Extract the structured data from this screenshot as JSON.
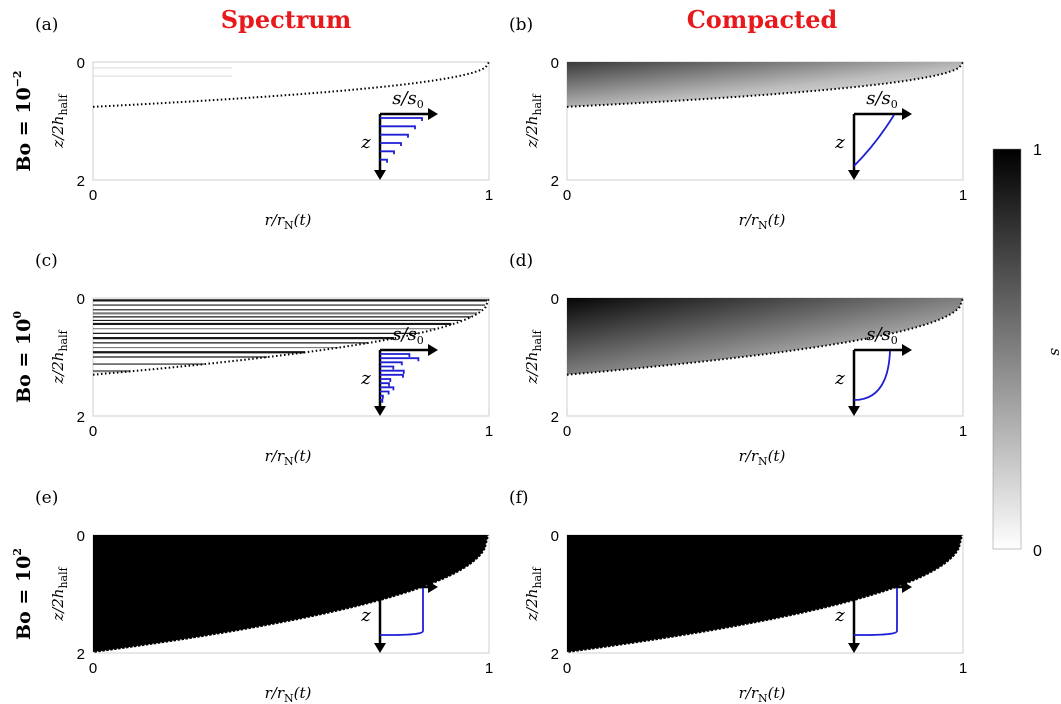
{
  "chart_data": {
    "type": "heatmap",
    "columns": [
      {
        "title": "Spectrum"
      },
      {
        "title": "Compacted"
      }
    ],
    "rows": [
      {
        "label_base": "Bo = 10",
        "exponent": "−2"
      },
      {
        "label_base": "Bo = 10",
        "exponent": "0"
      },
      {
        "label_base": "Bo = 10",
        "exponent": "2"
      }
    ],
    "panels": [
      {
        "letter": "(a)",
        "row": 0,
        "col": 0,
        "variant": "spectrum",
        "front_depth": 0.38
      },
      {
        "letter": "(b)",
        "row": 0,
        "col": 1,
        "variant": "compacted",
        "front_depth": 0.38
      },
      {
        "letter": "(c)",
        "row": 1,
        "col": 0,
        "variant": "spectrum",
        "front_depth": 0.65
      },
      {
        "letter": "(d)",
        "row": 1,
        "col": 1,
        "variant": "compacted",
        "front_depth": 0.65
      },
      {
        "letter": "(e)",
        "row": 2,
        "col": 0,
        "variant": "spectrum",
        "front_depth": 1.0
      },
      {
        "letter": "(f)",
        "row": 2,
        "col": 1,
        "variant": "compacted",
        "front_depth": 1.0
      }
    ],
    "x_axis": {
      "label_main": "r/r",
      "label_sub": "N",
      "label_tail": "(t)",
      "ticks": [
        "0",
        "1"
      ],
      "range": [
        0,
        1
      ]
    },
    "y_axis": {
      "label_main": "z/2h",
      "label_sub": "half",
      "ticks": [
        "0",
        "2"
      ],
      "range": [
        0,
        2
      ]
    },
    "inset": {
      "x_label": "s/s",
      "x_label_sub": "0",
      "y_label": "z"
    },
    "colorbar": {
      "label": "s",
      "ticks": [
        "0",
        "1"
      ],
      "range": [
        0,
        1
      ],
      "colormap": "white-to-black"
    },
    "colors": {
      "title": "#e8191c",
      "inset_curve": "#1f1fd6",
      "marks": "#000000"
    }
  }
}
